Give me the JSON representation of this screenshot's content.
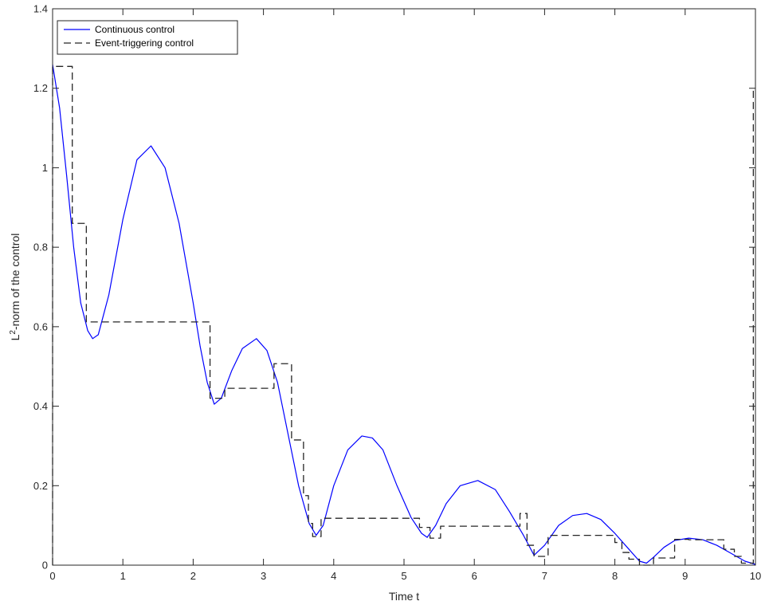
{
  "chart_data": {
    "type": "line",
    "title": "",
    "xlabel": "Time t",
    "ylabel_prefix": "L",
    "ylabel_sup": "2",
    "ylabel_rest": "-norm of the control",
    "xlim": [
      0,
      10
    ],
    "ylim": [
      0,
      1.4
    ],
    "x_ticks": [
      0,
      1,
      2,
      3,
      4,
      5,
      6,
      7,
      8,
      9,
      10
    ],
    "y_ticks": [
      0,
      0.2,
      0.4,
      0.6,
      0.8,
      1,
      1.2,
      1.4
    ],
    "x_tick_labels": [
      "0",
      "1",
      "2",
      "3",
      "4",
      "5",
      "6",
      "7",
      "8",
      "9",
      "10"
    ],
    "y_tick_labels": [
      "0",
      "0.2",
      "0.4",
      "0.6",
      "0.8",
      "1",
      "1.2",
      "1.4"
    ],
    "grid": false,
    "legend_position": "top-left",
    "series": [
      {
        "name": "Continuous control",
        "style": "solid",
        "color": "#0000ff",
        "x": [
          0,
          0.1,
          0.2,
          0.3,
          0.4,
          0.5,
          0.57,
          0.65,
          0.8,
          1.0,
          1.2,
          1.4,
          1.6,
          1.8,
          2.0,
          2.1,
          2.2,
          2.3,
          2.4,
          2.55,
          2.7,
          2.9,
          3.05,
          3.2,
          3.35,
          3.5,
          3.65,
          3.75,
          3.85,
          4.0,
          4.2,
          4.4,
          4.55,
          4.7,
          4.9,
          5.1,
          5.25,
          5.33,
          5.45,
          5.6,
          5.8,
          6.05,
          6.3,
          6.5,
          6.7,
          6.85,
          7.0,
          7.2,
          7.4,
          7.6,
          7.8,
          8.0,
          8.2,
          8.35,
          8.45,
          8.55,
          8.7,
          8.85,
          9.05,
          9.25,
          9.45,
          9.65,
          9.85,
          10.0
        ],
        "y": [
          1.26,
          1.15,
          0.98,
          0.8,
          0.66,
          0.59,
          0.57,
          0.58,
          0.68,
          0.87,
          1.02,
          1.055,
          1.0,
          0.86,
          0.66,
          0.55,
          0.46,
          0.405,
          0.42,
          0.49,
          0.545,
          0.57,
          0.54,
          0.46,
          0.33,
          0.2,
          0.105,
          0.075,
          0.1,
          0.2,
          0.29,
          0.325,
          0.32,
          0.29,
          0.2,
          0.12,
          0.08,
          0.07,
          0.1,
          0.155,
          0.2,
          0.213,
          0.19,
          0.135,
          0.075,
          0.025,
          0.05,
          0.1,
          0.125,
          0.13,
          0.115,
          0.08,
          0.04,
          0.01,
          0.005,
          0.02,
          0.045,
          0.062,
          0.068,
          0.064,
          0.05,
          0.03,
          0.01,
          0.002
        ]
      },
      {
        "name": "Event-triggering control",
        "style": "dashed",
        "color": "#262626",
        "x": [
          0,
          0,
          0.28,
          0.28,
          0.48,
          0.48,
          2.24,
          2.24,
          2.45,
          2.45,
          3.15,
          3.15,
          3.4,
          3.4,
          3.57,
          3.57,
          3.64,
          3.64,
          3.7,
          3.7,
          3.82,
          3.82,
          5.22,
          5.22,
          5.37,
          5.37,
          5.52,
          5.52,
          6.65,
          6.65,
          6.75,
          6.75,
          6.85,
          6.85,
          7.05,
          7.05,
          8.0,
          8.0,
          8.1,
          8.1,
          8.2,
          8.2,
          8.35,
          8.35,
          8.55,
          8.55,
          8.85,
          8.85,
          9.05,
          9.05,
          9.55,
          9.55,
          9.7,
          9.7,
          9.8,
          9.8,
          9.97,
          9.97
        ],
        "y": [
          0,
          1.255,
          1.255,
          0.86,
          0.86,
          0.612,
          0.612,
          0.42,
          0.42,
          0.445,
          0.445,
          0.507,
          0.507,
          0.315,
          0.315,
          0.175,
          0.175,
          0.105,
          0.105,
          0.072,
          0.072,
          0.118,
          0.118,
          0.095,
          0.095,
          0.068,
          0.068,
          0.098,
          0.098,
          0.13,
          0.13,
          0.05,
          0.05,
          0.022,
          0.022,
          0.075,
          0.075,
          0.057,
          0.057,
          0.032,
          0.032,
          0.015,
          0.015,
          0.0,
          0.0,
          0.018,
          0.018,
          0.065,
          0.065,
          0.064,
          0.064,
          0.04,
          0.04,
          0.022,
          0.022,
          0.005,
          0.005,
          1.2
        ]
      }
    ]
  }
}
